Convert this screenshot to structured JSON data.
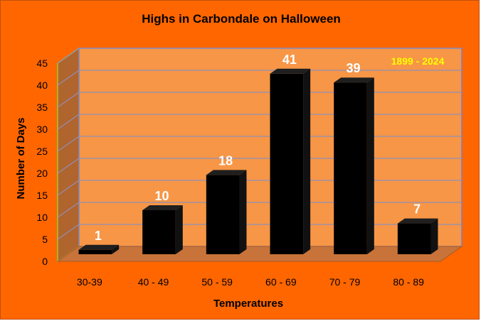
{
  "colors": {
    "background": "#ff6600",
    "plot_back": "#f79646",
    "plot_side": "#b0642e",
    "plot_floor": "#c8733a",
    "grid": "#8f8fb8",
    "bar_front": "#000000",
    "bar_top": "#1f1f1f",
    "data_label": "#ffffff",
    "annotation": "#ffff00",
    "back_edge": "#7f7fbf",
    "side_edge": "#9acd32"
  },
  "chart_data": {
    "type": "bar",
    "title": "Highs in Carbondale on Halloween",
    "xlabel": "Temperatures",
    "ylabel": "Number of Days",
    "annotation": "1899 - 2024",
    "categories": [
      "30-39",
      "40 - 49",
      "50 - 59",
      "60 - 69",
      "70 - 79",
      "80 - 89"
    ],
    "values": [
      1,
      10,
      18,
      41,
      39,
      7
    ],
    "data_labels": [
      "1",
      "10",
      "18",
      "41",
      "39",
      "7"
    ],
    "ylim": [
      0,
      45
    ],
    "yticks": [
      0,
      5,
      10,
      15,
      20,
      25,
      30,
      35,
      40,
      45
    ],
    "grid": true,
    "style": "3d-column",
    "legend": "none"
  }
}
